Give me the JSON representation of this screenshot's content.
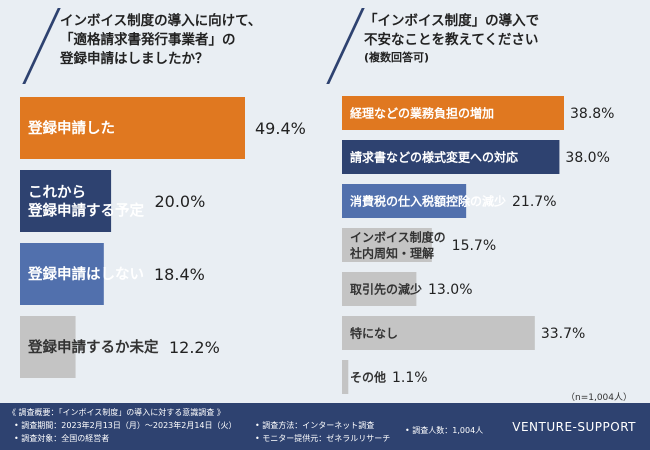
{
  "left": {
    "title_lines": [
      "インボイス制度の導入に向けて、",
      "「適格請求書発行事業者」の",
      "登録申請はしましたか？"
    ]
  },
  "right": {
    "title_lines": [
      "「インボイス制度」の導入で",
      "不安なことを教えてください"
    ],
    "subtitle": "(複数回答可)"
  },
  "n_label": "（n=1,004人）",
  "chart_data": [
    {
      "type": "bar",
      "orientation": "horizontal",
      "categories": [
        "登録申請した",
        "これから\n登録申請する予定",
        "登録申請はしない",
        "登録申請するか未定"
      ],
      "values": [
        49.4,
        20.0,
        18.4,
        12.2
      ],
      "value_labels": [
        "49.4%",
        "20.0%",
        "18.4%",
        "12.2%"
      ],
      "bar_colors": [
        "#e07820",
        "#2e4270",
        "#5170ad",
        "#c4c4c4"
      ],
      "label_colors": [
        "#ffffff",
        "#ffffff",
        "#ffffff",
        "#333333"
      ],
      "xlim": [
        0,
        49.4
      ]
    },
    {
      "type": "bar",
      "orientation": "horizontal",
      "categories": [
        "経理などの業務負担の増加",
        "請求書などの様式変更への対応",
        "消費税の仕入税額控除の減少",
        "インボイス制度の\n社内周知・理解",
        "取引先の減少",
        "特になし",
        "その他"
      ],
      "values": [
        38.8,
        38.0,
        21.7,
        15.7,
        13.0,
        33.7,
        1.1
      ],
      "value_labels": [
        "38.8%",
        "38.0%",
        "21.7%",
        "15.7%",
        "13.0%",
        "33.7%",
        "1.1%"
      ],
      "bar_colors": [
        "#e07820",
        "#2e4270",
        "#5170ad",
        "#c4c4c4",
        "#c4c4c4",
        "#c4c4c4",
        "#c4c4c4"
      ],
      "label_colors": [
        "#ffffff",
        "#ffffff",
        "#ffffff",
        "#333333",
        "#333333",
        "#333333",
        "#333333"
      ],
      "xlim": [
        0,
        38.8
      ]
    }
  ],
  "footer": {
    "summary": "《 調査概要：「インボイス制度」の導入に対する意識調査 》",
    "period": "• 調査期間：2023年2月13日（月）〜2023年2月14日（火）",
    "target": "• 調査対象：全国の経営者",
    "method": "• 調査方法：インターネット調査",
    "monitor": "• モニター提供元：ゼネラルリサーチ",
    "count": "• 調査人数：1,004人",
    "brand": "VENTURE-SUPPORT"
  }
}
